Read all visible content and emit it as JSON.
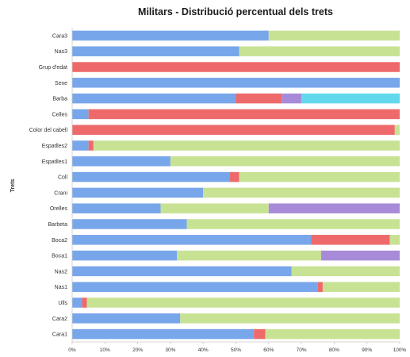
{
  "chart_data": {
    "type": "bar",
    "orientation": "horizontal",
    "stacked": "percent",
    "title": "Militars - Distribució percentual dels trets",
    "xlabel": "",
    "ylabel": "Trets",
    "xlim": [
      0,
      100
    ],
    "grid": false,
    "legend": "none",
    "categories": [
      "Cara3",
      "Nas3",
      "Grup d'edat",
      "Sexe",
      "Barba",
      "Celles",
      "Color del cabell",
      "Espatlles2",
      "Espatlles1",
      "Coll",
      "Crani",
      "Orelles",
      "Barbeta",
      "Boca2",
      "Boca1",
      "Nas2",
      "Nas1",
      "Ulls",
      "Cara2",
      "Cara1"
    ],
    "xticks": {
      "values": [
        0,
        10,
        20,
        30,
        40,
        50,
        60,
        70,
        80,
        90,
        100
      ],
      "labels": [
        "0%",
        "10%",
        "20%",
        "30%",
        "40%",
        "50%",
        "60%",
        "70%",
        "80%",
        "90%",
        "100%"
      ]
    },
    "series": [
      {
        "color": "#78a6ea",
        "values": [
          60,
          51,
          0,
          100,
          50,
          5,
          0,
          5,
          30,
          48,
          40,
          27,
          35,
          73,
          32,
          67,
          75,
          3,
          33,
          55.5
        ]
      },
      {
        "color": "#ee6a6a",
        "values": [
          0,
          0,
          100,
          0,
          14,
          95,
          98.5,
          1.5,
          0,
          3,
          0,
          0,
          0,
          24,
          0,
          0,
          1.5,
          1.5,
          0,
          3.5
        ]
      },
      {
        "color": "#c8e294",
        "values": [
          40,
          49,
          0,
          0,
          0,
          0,
          1.5,
          93.5,
          70,
          49,
          60,
          33,
          65,
          3,
          44,
          33,
          23.5,
          95.5,
          67,
          41
        ]
      },
      {
        "color": "#a88bd8",
        "values": [
          0,
          0,
          0,
          0,
          6,
          0,
          0,
          0,
          0,
          0,
          0,
          40,
          0,
          0,
          24,
          0,
          0,
          0,
          0,
          0
        ]
      },
      {
        "color": "#62d8ec",
        "values": [
          0,
          0,
          0,
          0,
          30,
          0,
          0,
          0,
          0,
          0,
          0,
          0,
          0,
          0,
          0,
          0,
          0,
          0,
          0,
          0
        ]
      }
    ]
  }
}
